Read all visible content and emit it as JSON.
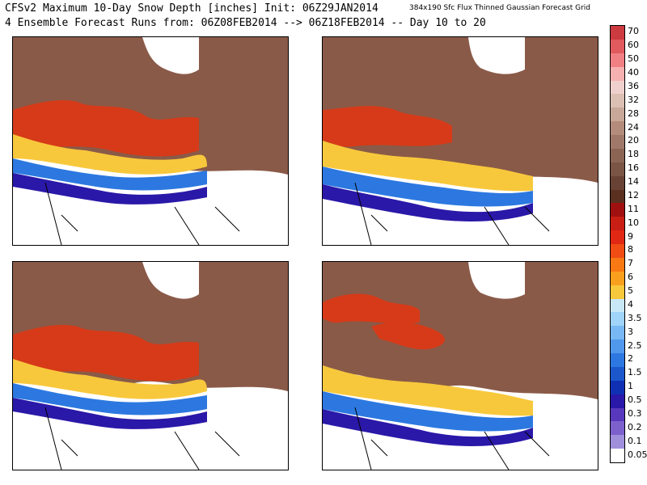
{
  "header": {
    "title_line1": "CFSv2 Maximum 10-Day Snow Depth [inches] Init: 06Z29JAN2014",
    "title_line2": "4 Ensemble Forecast Runs from: 06Z08FEB2014 --> 06Z18FEB2014 -- Day 10 to 20",
    "subtitle": "384x190 Sfc Flux Thinned Gaussian Forecast Grid"
  },
  "panels": [
    {
      "name": "ensemble-run-1"
    },
    {
      "name": "ensemble-run-2"
    },
    {
      "name": "ensemble-run-3"
    },
    {
      "name": "ensemble-run-4"
    }
  ],
  "legend": {
    "labels": [
      "70",
      "60",
      "50",
      "40",
      "36",
      "32",
      "28",
      "24",
      "20",
      "18",
      "16",
      "14",
      "12",
      "11",
      "10",
      "9",
      "8",
      "7",
      "6",
      "5",
      "4",
      "3.5",
      "3",
      "2.5",
      "2",
      "1.5",
      "1",
      "0.5",
      "0.3",
      "0.2",
      "0.1",
      "0.05"
    ],
    "colors": [
      "#cc3b3f",
      "#e05a5e",
      "#f08084",
      "#f6b0b0",
      "#f0d0cc",
      "#dcc0b4",
      "#c8a898",
      "#b48c7c",
      "#a0786a",
      "#8c6454",
      "#7a5444",
      "#684234",
      "#5a3020",
      "#a01010",
      "#c81e14",
      "#e02814",
      "#f04c14",
      "#f87814",
      "#f8a01e",
      "#f8c83c",
      "#c8e8f8",
      "#a0d4f8",
      "#78b8f4",
      "#5098ec",
      "#2c78e0",
      "#1c58cc",
      "#1030b4",
      "#2a18a8",
      "#5838bc",
      "#7c60cc",
      "#a090dc",
      "#ffffff"
    ]
  }
}
